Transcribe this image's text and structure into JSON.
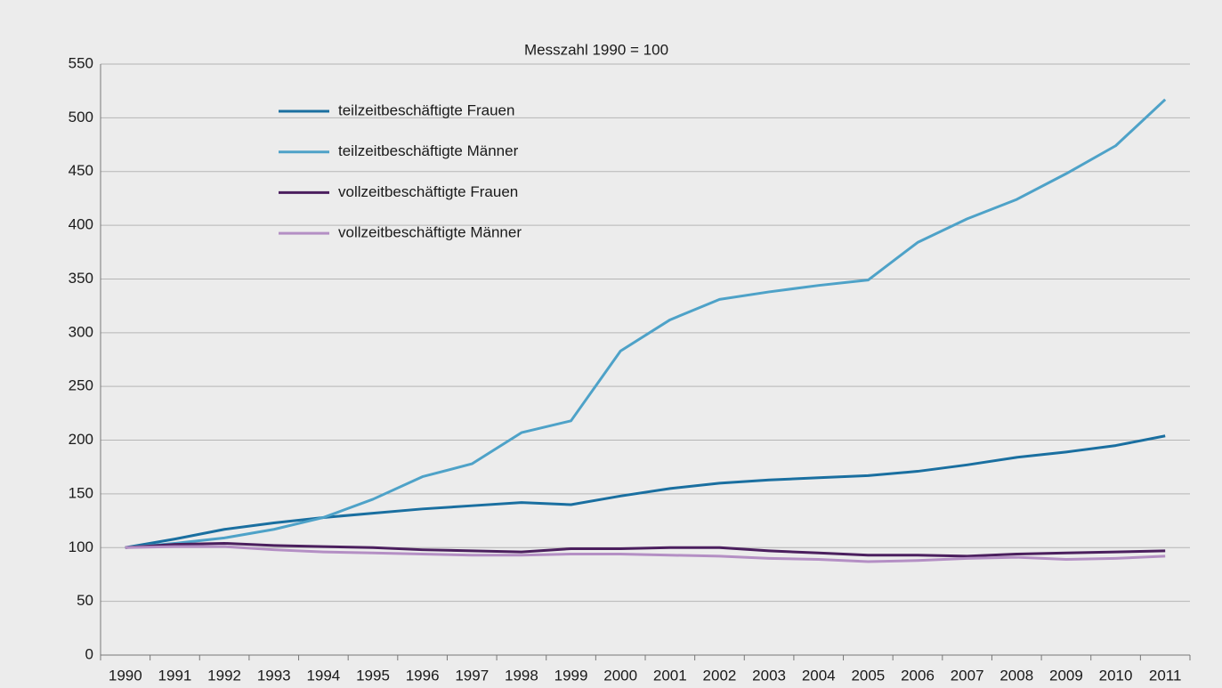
{
  "chart_data": {
    "type": "line",
    "title": "Messzahl 1990 = 100",
    "categories": [
      "1990",
      "1991",
      "1992",
      "1993",
      "1994",
      "1995",
      "1996",
      "1997",
      "1998",
      "1999",
      "2000",
      "2001",
      "2002",
      "2003",
      "2004",
      "2005",
      "2006",
      "2007",
      "2008",
      "2009",
      "2010",
      "2011"
    ],
    "series": [
      {
        "name": "teilzeitbeschäftigte Frauen",
        "color": "#1a6fa0",
        "values": [
          100,
          108,
          117,
          123,
          128,
          132,
          136,
          139,
          142,
          140,
          148,
          155,
          160,
          163,
          165,
          167,
          171,
          177,
          184,
          189,
          195,
          204
        ]
      },
      {
        "name": "teilzeitbeschäftigte Männer",
        "color": "#4ea2c8",
        "values": [
          100,
          104,
          109,
          117,
          128,
          145,
          166,
          178,
          207,
          218,
          283,
          312,
          331,
          338,
          344,
          349,
          384,
          406,
          424,
          448,
          474,
          517
        ]
      },
      {
        "name": "vollzeitbeschäftigte Frauen",
        "color": "#4b1f5e",
        "values": [
          100,
          103,
          104,
          102,
          101,
          100,
          98,
          97,
          96,
          99,
          99,
          100,
          100,
          97,
          95,
          93,
          93,
          92,
          94,
          95,
          96,
          97
        ]
      },
      {
        "name": "vollzeitbeschäftigte Männer",
        "color": "#b48fc4",
        "values": [
          100,
          101,
          101,
          98,
          96,
          95,
          94,
          93,
          93,
          94,
          94,
          93,
          92,
          90,
          89,
          87,
          88,
          90,
          91,
          89,
          90,
          92
        ]
      }
    ],
    "ylim": [
      0,
      550
    ],
    "yticks": [
      0,
      50,
      100,
      150,
      200,
      250,
      300,
      350,
      400,
      450,
      500,
      550
    ],
    "grid": true
  }
}
